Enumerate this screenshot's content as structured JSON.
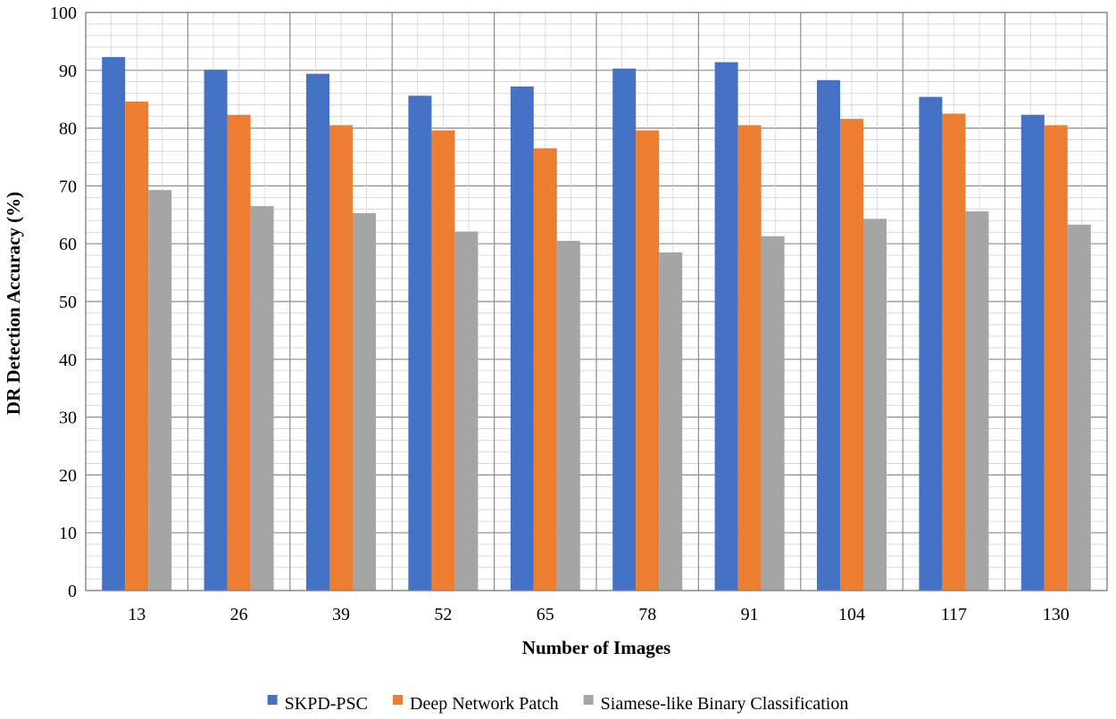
{
  "chart_data": {
    "type": "bar",
    "title": "",
    "xlabel": "Number of Images",
    "ylabel": "DR Detection Accuracy (%)",
    "ylim": [
      0,
      100
    ],
    "y_ticks": [
      0,
      10,
      20,
      30,
      40,
      50,
      60,
      70,
      80,
      90,
      100
    ],
    "grid": true,
    "legend_position": "bottom",
    "categories": [
      "13",
      "26",
      "39",
      "52",
      "65",
      "78",
      "91",
      "104",
      "117",
      "130"
    ],
    "series": [
      {
        "name": "SKPD-PSC",
        "color": "#4472C4",
        "values": [
          92.3,
          90.1,
          89.4,
          85.6,
          87.2,
          90.3,
          91.4,
          88.3,
          85.4,
          82.3
        ]
      },
      {
        "name": "Deep Network Patch",
        "color": "#ED7D31",
        "values": [
          84.6,
          82.3,
          80.5,
          79.6,
          76.5,
          79.6,
          80.5,
          81.6,
          82.5,
          80.5
        ]
      },
      {
        "name": "Siamese-like Binary Classification",
        "color": "#A5A5A5",
        "values": [
          69.3,
          66.5,
          65.3,
          62.1,
          60.5,
          58.5,
          61.3,
          64.3,
          65.6,
          63.3
        ]
      }
    ]
  }
}
